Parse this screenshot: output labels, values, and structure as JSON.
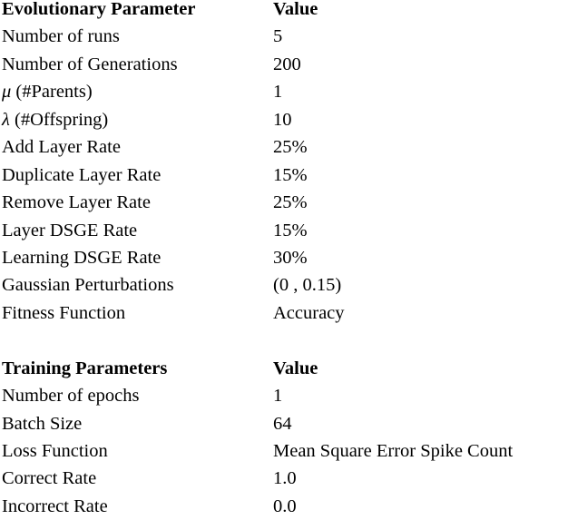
{
  "sections": [
    {
      "header": [
        "Evolutionary Parameter",
        "Value"
      ],
      "rows": [
        [
          "Number of runs",
          "5"
        ],
        [
          "Number of Generations",
          "200"
        ],
        [
          "μ (#Parents)",
          "1"
        ],
        [
          "λ (#Offspring)",
          "10"
        ],
        [
          "Add Layer Rate",
          "25%"
        ],
        [
          "Duplicate Layer Rate",
          "15%"
        ],
        [
          "Remove Layer Rate",
          "25%"
        ],
        [
          "Layer DSGE Rate",
          "15%"
        ],
        [
          "Learning DSGE Rate",
          "30%"
        ],
        [
          "Gaussian Perturbations",
          "(0 , 0.15)"
        ],
        [
          "Fitness Function",
          "Accuracy"
        ]
      ]
    },
    {
      "header": [
        "Training Parameters",
        "Value"
      ],
      "rows": [
        [
          "Number of epochs",
          "1"
        ],
        [
          "Batch Size",
          "64"
        ],
        [
          "Loss Function",
          "Mean Square Error Spike Count"
        ],
        [
          "Correct Rate",
          "1.0"
        ],
        [
          "Incorrect Rate",
          "0.0"
        ]
      ]
    }
  ]
}
